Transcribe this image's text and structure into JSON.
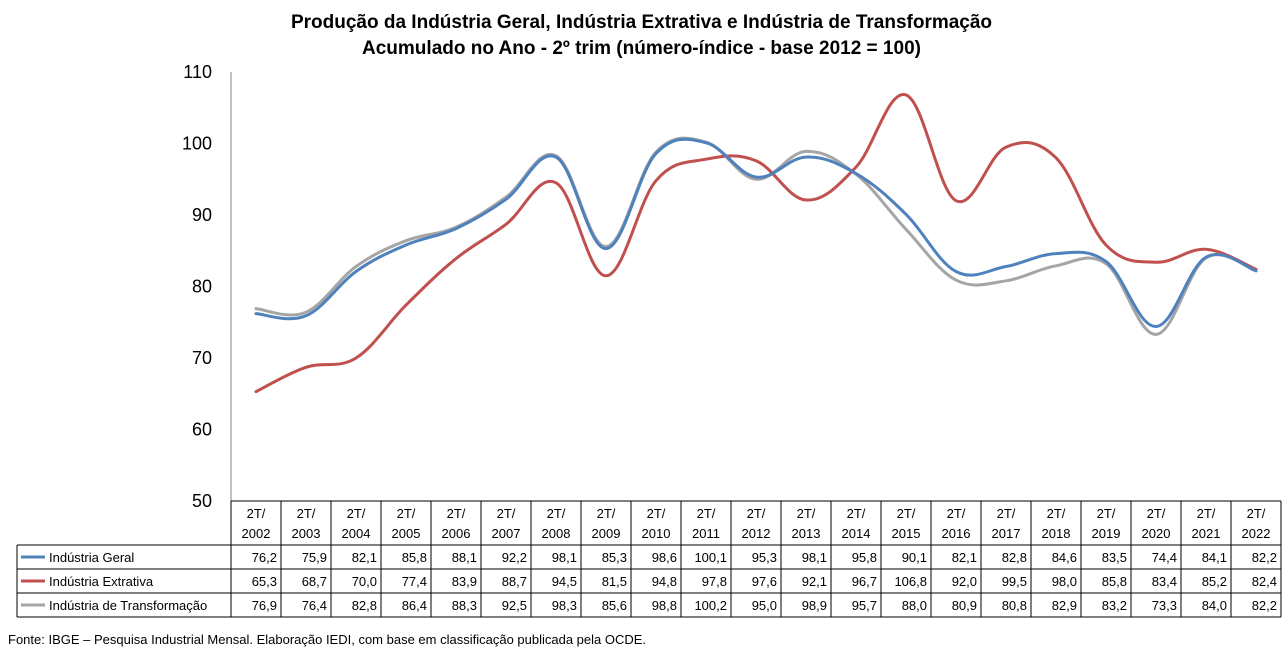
{
  "title_line1": "Produção da Indústria Geral, Indústria Extrativa e Indústria de Transformação",
  "title_line2": "Acumulado no Ano - 2º trim (número-índice - base 2012 = 100)",
  "source": "Fonte: IBGE – Pesquisa Industrial Mensal. Elaboração IEDI, com base em classificação publicada pela OCDE.",
  "chart_data": {
    "type": "line",
    "title": "Produção da Indústria Geral, Indústria Extrativa e Indústria de Transformação Acumulado no Ano - 2º trim (número-índice - base 2012 = 100)",
    "ylim": [
      50,
      110
    ],
    "yticks": [
      50,
      60,
      70,
      80,
      90,
      100,
      110
    ],
    "grid": false,
    "legend": "data-table-left",
    "categories": [
      "2T/ 2002",
      "2T/ 2003",
      "2T/ 2004",
      "2T/ 2005",
      "2T/ 2006",
      "2T/ 2007",
      "2T/ 2008",
      "2T/ 2009",
      "2T/ 2010",
      "2T/ 2011",
      "2T/ 2012",
      "2T/ 2013",
      "2T/ 2014",
      "2T/ 2015",
      "2T/ 2016",
      "2T/ 2017",
      "2T/ 2018",
      "2T/ 2019",
      "2T/ 2020",
      "2T/ 2021",
      "2T/ 2022"
    ],
    "series": [
      {
        "name": "Indústria Geral",
        "color": "#4f81bd",
        "values": [
          76.2,
          75.9,
          82.1,
          85.8,
          88.1,
          92.2,
          98.1,
          85.3,
          98.6,
          100.1,
          95.3,
          98.1,
          95.8,
          90.1,
          82.1,
          82.8,
          84.6,
          83.5,
          74.4,
          84.1,
          82.2
        ],
        "labels": [
          "76,2",
          "75,9",
          "82,1",
          "85,8",
          "88,1",
          "92,2",
          "98,1",
          "85,3",
          "98,6",
          "100,1",
          "95,3",
          "98,1",
          "95,8",
          "90,1",
          "82,1",
          "82,8",
          "84,6",
          "83,5",
          "74,4",
          "84,1",
          "82,2"
        ]
      },
      {
        "name": "Indústria Extrativa",
        "color": "#c0504d",
        "values": [
          65.3,
          68.7,
          70.0,
          77.4,
          83.9,
          88.7,
          94.5,
          81.5,
          94.8,
          97.8,
          97.6,
          92.1,
          96.7,
          106.8,
          92.0,
          99.5,
          98.0,
          85.8,
          83.4,
          85.2,
          82.4
        ],
        "labels": [
          "65,3",
          "68,7",
          "70,0",
          "77,4",
          "83,9",
          "88,7",
          "94,5",
          "81,5",
          "94,8",
          "97,8",
          "97,6",
          "92,1",
          "96,7",
          "106,8",
          "92,0",
          "99,5",
          "98,0",
          "85,8",
          "83,4",
          "85,2",
          "82,4"
        ]
      },
      {
        "name": "Indústria de Transformação",
        "color": "#a5a5a5",
        "values": [
          76.9,
          76.4,
          82.8,
          86.4,
          88.3,
          92.5,
          98.3,
          85.6,
          98.8,
          100.2,
          95.0,
          98.9,
          95.7,
          88.0,
          80.9,
          80.8,
          82.9,
          83.2,
          73.3,
          84.0,
          82.2
        ],
        "labels": [
          "76,9",
          "76,4",
          "82,8",
          "86,4",
          "88,3",
          "92,5",
          "98,3",
          "85,6",
          "98,8",
          "100,2",
          "95,0",
          "98,9",
          "95,7",
          "88,0",
          "80,9",
          "80,8",
          "82,9",
          "83,2",
          "73,3",
          "84,0",
          "82,2"
        ]
      }
    ]
  }
}
